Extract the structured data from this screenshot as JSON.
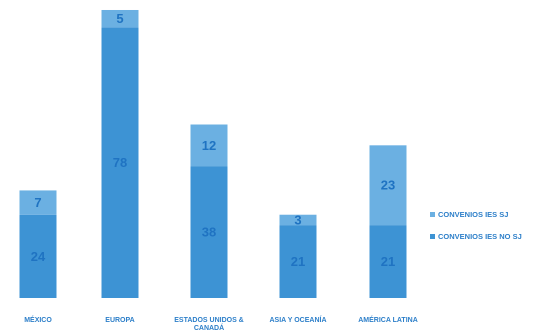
{
  "chart_data": {
    "type": "bar",
    "stacked": true,
    "categories": [
      "MÉXICO",
      "EUROPA",
      "ESTADOS UNIDOS & CANADÁ",
      "ASIA Y OCEANÍA",
      "AMÉRICA LATINA"
    ],
    "series": [
      {
        "name": "CONVENIOS IES NO SJ",
        "values": [
          24,
          78,
          38,
          21,
          21
        ],
        "color": "#3d93d4"
      },
      {
        "name": "CONVENIOS IES SJ",
        "values": [
          7,
          5,
          12,
          3,
          23
        ],
        "color": "#6bb0e2"
      }
    ],
    "legend_position": "right",
    "legend_order": [
      "CONVENIOS IES SJ",
      "CONVENIOS IES NO SJ"
    ],
    "grid": false,
    "label_color": "#2d7fc9",
    "value_label_color": "#1f73c2"
  }
}
